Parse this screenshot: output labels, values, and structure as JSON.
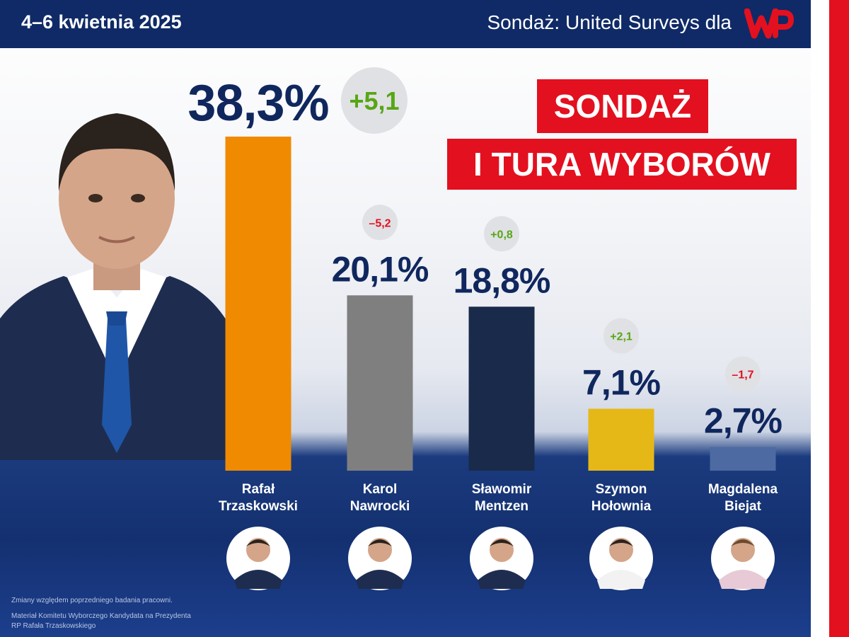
{
  "header": {
    "date": "4–6 kwietnia 2025",
    "source": "Sondaż: United Surveys dla",
    "logo_text": "WP"
  },
  "title": {
    "line1": "SONDAŻ",
    "line2": "I TURA WYBORÓW"
  },
  "chart_data": {
    "type": "bar",
    "categories": [
      "Rafał Trzaskowski",
      "Karol Nawrocki",
      "Sławomir Mentzen",
      "Szymon Hołownia",
      "Magdalena Biejat"
    ],
    "name_lines": [
      [
        "Rafał",
        "Trzaskowski"
      ],
      [
        "Karol",
        "Nawrocki"
      ],
      [
        "Sławomir",
        "Mentzen"
      ],
      [
        "Szymon",
        "Hołownia"
      ],
      [
        "Magdalena",
        "Biejat"
      ]
    ],
    "values": [
      38.3,
      20.1,
      18.8,
      7.1,
      2.7
    ],
    "value_labels": [
      "38,3%",
      "20,1%",
      "18,8%",
      "7,1%",
      "2,7%"
    ],
    "changes": [
      5.1,
      -5.2,
      0.8,
      2.1,
      -1.7
    ],
    "change_labels": [
      "+5,1",
      "–5,2",
      "+0,8",
      "+2,1",
      "–1,7"
    ],
    "colors": [
      "#f08a00",
      "#7f7f7f",
      "#1a2a4a",
      "#e6b817",
      "#4d6aa3"
    ],
    "positive_color": "#57a616",
    "negative_color": "#e3101f",
    "ylim": [
      0,
      38.3
    ]
  },
  "footnotes": {
    "note": "Zmiany względem poprzedniego badania pracowni.",
    "credit": "Materiał Komitetu Wyborczego Kandydata na Prezydenta RP Rafała Trzaskowskiego"
  },
  "colors": {
    "header_bg": "#0f2a66",
    "accent_red": "#e3101f",
    "navy_text": "#10275e"
  }
}
